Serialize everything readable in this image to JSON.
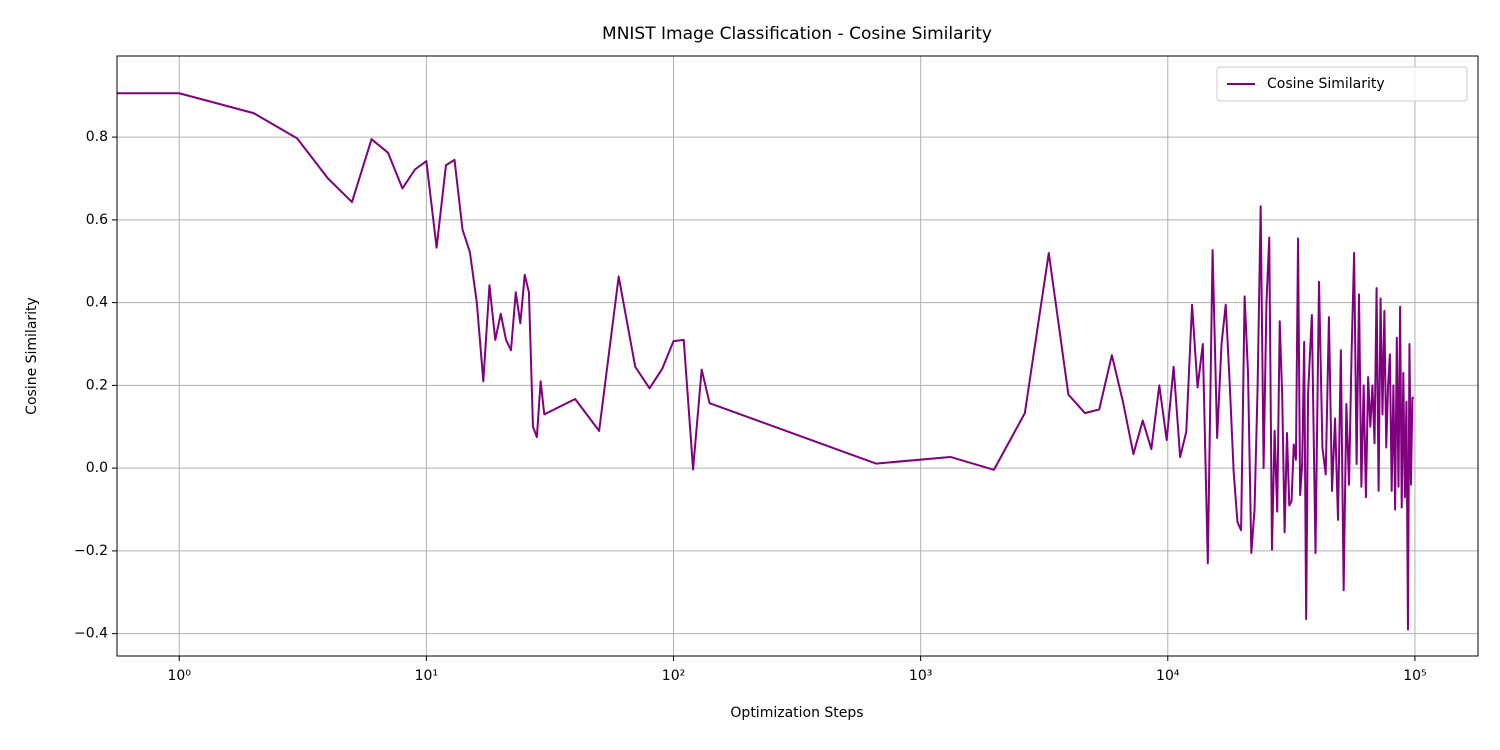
{
  "chart_data": {
    "type": "line",
    "title": "MNIST Image Classification - Cosine Similarity",
    "x_label": "Optimization Steps",
    "y_label": "Cosine Similarity",
    "x_scale": "log",
    "grid": true,
    "legend_position": "upper right",
    "xlim": [
      0.56,
      180000
    ],
    "ylim": [
      -0.454,
      0.996
    ],
    "xticks": [
      {
        "value": 1,
        "label": "10⁰"
      },
      {
        "value": 10,
        "label": "10¹"
      },
      {
        "value": 100,
        "label": "10²"
      },
      {
        "value": 1000,
        "label": "10³"
      },
      {
        "value": 10000,
        "label": "10⁴"
      },
      {
        "value": 100000,
        "label": "10⁵"
      }
    ],
    "yticks": [
      {
        "value": -0.4,
        "label": "−0.4"
      },
      {
        "value": -0.2,
        "label": "−0.2"
      },
      {
        "value": 0,
        "label": "0.0"
      },
      0.2,
      0.4,
      0.6,
      0.8
    ],
    "x": [
      0,
      1,
      2,
      3,
      4,
      5,
      6,
      7,
      8,
      9,
      10,
      11,
      12,
      13,
      14,
      15,
      16,
      17,
      18,
      19,
      20,
      21,
      22,
      23,
      24,
      25,
      26,
      27,
      28,
      29,
      30,
      40,
      50,
      60,
      70,
      80,
      90,
      100,
      110,
      120,
      130,
      140,
      660,
      1320,
      1980,
      2640,
      3300,
      3960,
      4620,
      5280,
      5940,
      6600,
      7260,
      7920,
      8580,
      9240,
      9900,
      10560,
      11220,
      11880,
      12540,
      13200,
      13860,
      14520,
      15180,
      15840,
      16500,
      17160,
      17820,
      18480,
      19140,
      19800,
      20460,
      21120,
      21780,
      22440,
      23100,
      23760,
      24420,
      25080,
      25740,
      26400,
      27060,
      27720,
      28380,
      29040,
      29700,
      30360,
      31020,
      31680,
      32340,
      33000,
      33660,
      34320,
      34980,
      35640,
      36300,
      36960,
      38280,
      39600,
      40920,
      42240,
      43560,
      44880,
      46200,
      47520,
      48840,
      50160,
      51480,
      52800,
      54120,
      55440,
      56760,
      58080,
      59400,
      60720,
      62040,
      63360,
      64680,
      66000,
      67320,
      68640,
      69960,
      71280,
      72600,
      73920,
      75240,
      76560,
      77880,
      79200,
      80520,
      81840,
      83160,
      84480,
      85800,
      87120,
      88440,
      89760,
      91080,
      92400,
      93720,
      95040,
      96360,
      97680,
      99000
    ],
    "series": [
      {
        "name": "Cosine Similarity",
        "color": "#800080",
        "values": [
          0.906,
          0.906,
          0.858,
          0.797,
          0.7,
          0.643,
          0.795,
          0.762,
          0.676,
          0.722,
          0.742,
          0.533,
          0.732,
          0.745,
          0.577,
          0.522,
          0.4,
          0.21,
          0.442,
          0.31,
          0.373,
          0.31,
          0.285,
          0.425,
          0.35,
          0.467,
          0.425,
          0.1,
          0.075,
          0.21,
          0.13,
          0.167,
          0.09,
          0.463,
          0.245,
          0.193,
          0.24,
          0.307,
          0.31,
          -0.003,
          0.238,
          0.157,
          0.011,
          0.027,
          -0.004,
          0.133,
          0.52,
          0.178,
          0.133,
          0.142,
          0.273,
          0.158,
          0.034,
          0.115,
          0.046,
          0.2,
          0.068,
          0.245,
          0.027,
          0.088,
          0.395,
          0.195,
          0.3,
          -0.23,
          0.527,
          0.073,
          0.3,
          0.395,
          0.2,
          -0.01,
          -0.13,
          -0.15,
          0.415,
          0.23,
          -0.205,
          -0.1,
          0.2,
          0.633,
          0.0,
          0.4,
          0.557,
          -0.197,
          0.09,
          -0.105,
          0.355,
          0.175,
          -0.155,
          0.085,
          -0.09,
          -0.08,
          0.057,
          0.02,
          0.555,
          -0.065,
          0.01,
          0.305,
          -0.365,
          0.18,
          0.37,
          -0.205,
          0.45,
          0.05,
          -0.015,
          0.365,
          -0.055,
          0.12,
          -0.125,
          0.285,
          -0.295,
          0.155,
          -0.04,
          0.28,
          0.52,
          0.01,
          0.42,
          -0.045,
          0.2,
          -0.07,
          0.22,
          0.1,
          0.2,
          0.06,
          0.435,
          -0.055,
          0.41,
          0.13,
          0.38,
          0.05,
          0.2,
          0.275,
          -0.055,
          0.2,
          -0.1,
          0.315,
          -0.045,
          0.39,
          -0.095,
          0.23,
          -0.07,
          0.16,
          -0.39,
          0.3,
          -0.04,
          0.17,
          0.17
        ]
      }
    ]
  }
}
